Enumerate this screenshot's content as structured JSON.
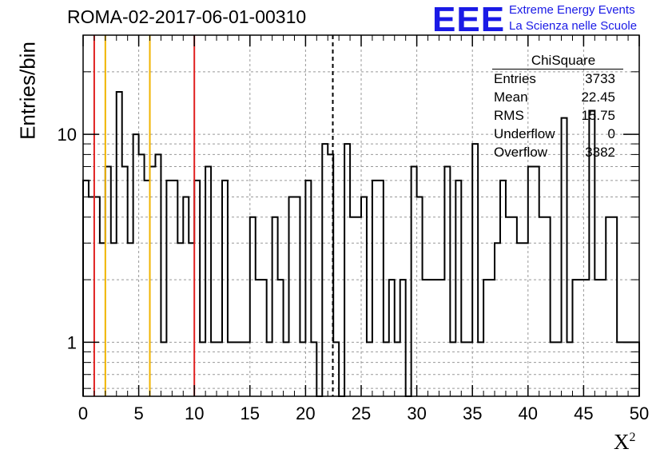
{
  "title": "ROMA-02-2017-06-01-00310",
  "logo": {
    "text": "EEE",
    "line1": "Extreme Energy Events",
    "line2": "La Scienza nelle Scuole",
    "color": "#1a1ae6"
  },
  "stats_box": {
    "title": "ChiSquare",
    "rows": [
      {
        "label": "Entries",
        "value": "3733"
      },
      {
        "label": "Mean",
        "value": "22.45"
      },
      {
        "label": "RMS",
        "value": "15.75"
      },
      {
        "label": "Underflow",
        "value": "0"
      },
      {
        "label": "Overflow",
        "value": "3382"
      }
    ]
  },
  "chart_data": {
    "type": "histogram",
    "ylabel": "Entries/bin",
    "xlabel": "X",
    "xlabel_sup": "2",
    "xlim": [
      0,
      50
    ],
    "ylim": [
      0.55,
      30
    ],
    "yscale": "log",
    "x_ticks": [
      "0",
      "5",
      "10",
      "15",
      "20",
      "25",
      "30",
      "35",
      "40",
      "45",
      "50"
    ],
    "y_ticks": [
      "1",
      "10"
    ],
    "grid": true,
    "bin_width": 0.5,
    "values": [
      6,
      5,
      5,
      3,
      7,
      3,
      16,
      7,
      3,
      10,
      8,
      6,
      7,
      8,
      1,
      6,
      6,
      3,
      5,
      3,
      6,
      1,
      7,
      1,
      1,
      6,
      1,
      1,
      1,
      1,
      4,
      2,
      2,
      1,
      4,
      2,
      1,
      5,
      5,
      1,
      6,
      1,
      0,
      9,
      8,
      1,
      0,
      9,
      4,
      4,
      5,
      1,
      6,
      6,
      1,
      2,
      1,
      2,
      0,
      7,
      5,
      2,
      2,
      2,
      2,
      7,
      1,
      6,
      1,
      1,
      9,
      1,
      2,
      2,
      3,
      6,
      4,
      4,
      3,
      3,
      7,
      7,
      4,
      4,
      1,
      1,
      12,
      1,
      2,
      2,
      2,
      13,
      2,
      2,
      4,
      4,
      1,
      1,
      1,
      1
    ],
    "vertical_lines": [
      {
        "x": 1,
        "color": "#e02020",
        "style": "solid"
      },
      {
        "x": 2,
        "color": "#f0b400",
        "style": "solid"
      },
      {
        "x": 6,
        "color": "#f0b400",
        "style": "solid"
      },
      {
        "x": 10,
        "color": "#e02020",
        "style": "solid"
      },
      {
        "x": 22.45,
        "color": "#000000",
        "style": "dashed"
      }
    ],
    "line_color": "#000000"
  }
}
